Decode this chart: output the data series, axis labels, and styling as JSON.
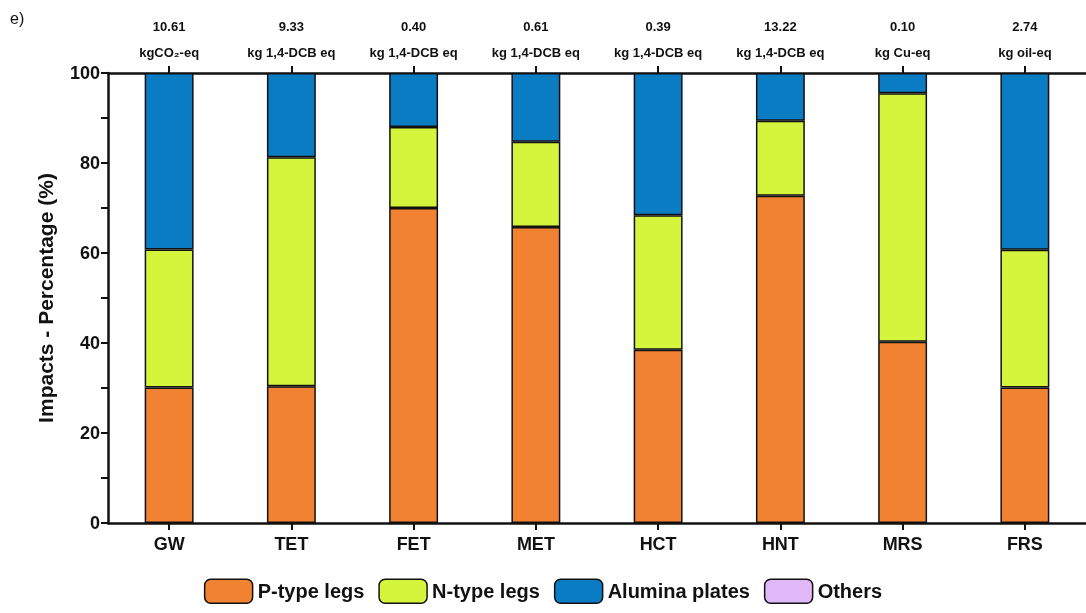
{
  "chart_data": {
    "type": "bar",
    "stacked": true,
    "ylabel": "Impacts - Percentage (%)",
    "categories": [
      "GW",
      "TET",
      "FET",
      "MET",
      "HCT",
      "HNT",
      "MRS",
      "FRS"
    ],
    "series": [
      {
        "name": "P-type legs",
        "color": "#f08232",
        "values": [
          30.1,
          30.4,
          70.0,
          65.8,
          38.5,
          72.7,
          40.3,
          30.1
        ]
      },
      {
        "name": "N-type legs",
        "color": "#d4f53c",
        "values": [
          30.7,
          50.9,
          18.0,
          18.9,
          29.9,
          16.7,
          55.2,
          30.6
        ]
      },
      {
        "name": "Alumina plates",
        "color": "#0a7cc4",
        "values": [
          39.2,
          18.7,
          12.0,
          15.3,
          31.6,
          10.6,
          4.5,
          39.3
        ]
      },
      {
        "name": "Others",
        "color": "#e0b8f8",
        "values": [
          0,
          0,
          0,
          0,
          0,
          0,
          0,
          0
        ]
      }
    ],
    "ylim": [
      0,
      100
    ],
    "yticks": [
      0,
      {
        "value": 10,
        "label": null
      },
      20,
      {
        "value": 30,
        "label": null
      },
      40,
      {
        "value": 50,
        "label": null
      },
      60,
      {
        "value": 70,
        "label": null
      },
      80,
      {
        "value": 90,
        "label": null
      },
      100
    ],
    "annotations": [
      "e)",
      "10.61\nkgCO₂-eq",
      "9.33\nkg 1,4-DCB eq",
      "0.40\nkg 1,4-DCB eq",
      "0.61\nkg 1,4-DCB eq",
      "0.39\nkg 1,4-DCB eq",
      "13.22\nkg 1,4-DCB eq",
      "0.10\nkg Cu-eq",
      "2.74\nkg oil-eq"
    ],
    "legend": "bottom",
    "grid": false
  }
}
